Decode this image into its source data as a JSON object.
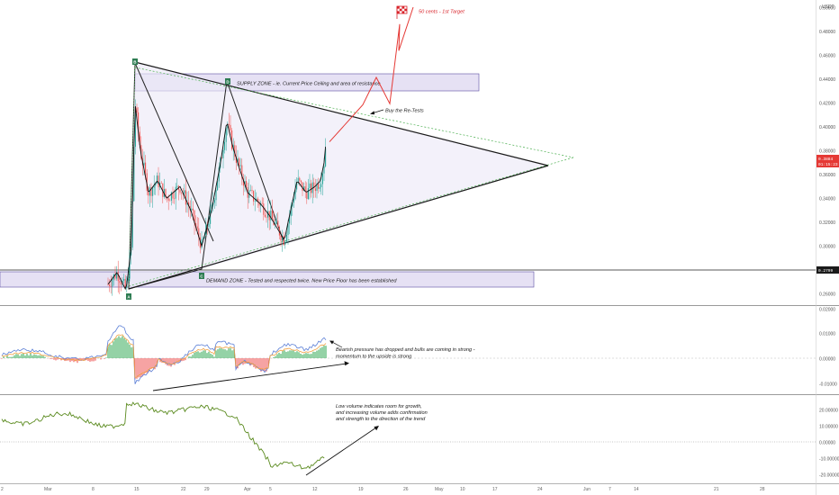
{
  "currency_label": "USDT",
  "annotations": {
    "supply_zone": "SUPPLY ZONE - ie. Current Price Ceiling and area of resistance",
    "demand_zone": "DEMAND ZONE - Tested and respected twice. New Price Floor has been established",
    "retest": "Buy the Re-Tests",
    "target": "50 cents - 1st Target",
    "momentum_line1": "Bearish pressure has dropped and bulls are coming in strong -",
    "momentum_line2": "momentum to the upside is strong",
    "volume_line1": "Low volume indicates room for growth,",
    "volume_line2": "and increasing volume adds confirmation",
    "volume_line3": "and strength to the direction of the trend"
  },
  "points": {
    "A": "A",
    "B": "B",
    "C": "C",
    "D": "D"
  },
  "price_tags": {
    "current": "0.3884",
    "countdown": "01:15:23",
    "level": "0.2799"
  },
  "chart_data": [
    {
      "type": "candlestick",
      "panel": "price",
      "ylim": [
        0.26,
        0.51
      ],
      "y_ticks": [
        "0.50000",
        "0.48000",
        "0.46000",
        "0.44000",
        "0.42000",
        "0.40000",
        "0.38000",
        "0.36000",
        "0.34000",
        "0.32000",
        "0.30000",
        "0.28000",
        "0.26000"
      ],
      "x_ticks": [
        "2",
        "Mar",
        "8",
        "15",
        "22",
        "29",
        "Apr",
        "5",
        "12",
        "19",
        "26",
        "May",
        "10",
        "17",
        "24",
        "Jun",
        "7",
        "14",
        "21",
        "28"
      ],
      "zones": [
        {
          "name": "supply",
          "from": 0.434,
          "to": 0.45
        },
        {
          "name": "demand",
          "from": 0.2655,
          "to": 0.2785
        }
      ],
      "horizontal_level": 0.2799,
      "current_price": 0.3884,
      "pattern_points": [
        {
          "label": "A",
          "price": 0.2625
        },
        {
          "label": "B",
          "price": 0.4615
        },
        {
          "label": "C",
          "price": 0.2745
        },
        {
          "label": "D",
          "price": 0.443
        }
      ],
      "projected_path_prices": [
        0.3875,
        0.4185,
        0.4415,
        0.4195,
        0.4862,
        0.4639,
        0.5004
      ]
    },
    {
      "type": "line",
      "panel": "momentum",
      "ylim": [
        -0.013,
        0.023
      ],
      "y_ticks": [
        "0.02000",
        "0.01000",
        "0.00000",
        "-0.01000"
      ],
      "series": [
        {
          "values": []
        }
      ]
    },
    {
      "type": "line",
      "panel": "volume",
      "ylim": [
        -23,
        25
      ],
      "y_ticks": [
        "20.00000",
        "10.00000",
        "0.00000",
        "-10.00000",
        "-20.00000"
      ],
      "series": [
        {
          "values": []
        }
      ]
    }
  ]
}
